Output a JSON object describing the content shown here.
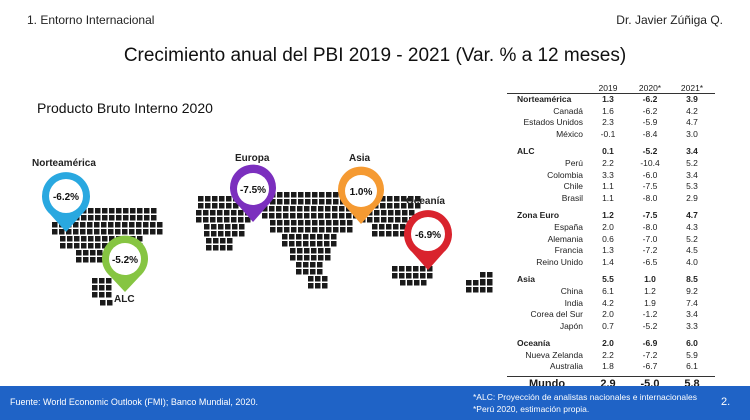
{
  "header": {
    "section": "1. Entorno Internacional",
    "author": "Dr. Javier Zúñiga Q."
  },
  "title": "Crecimiento anual del PBI 2019 - 2021 (Var. % a 12 meses)",
  "subtitle": "Producto Bruto Interno 2020",
  "map": {
    "pins": {
      "norteamerica": {
        "label": "Norteamérica",
        "value": "-6.2%",
        "color": "#29a8e0"
      },
      "alc": {
        "label": "ALC",
        "value": "-5.2%",
        "color": "#86c542"
      },
      "europa": {
        "label": "Europa",
        "value": "-7.5%",
        "color": "#7b2fbe"
      },
      "asia": {
        "label": "Asia",
        "value": "1.0%",
        "color": "#f59a32"
      },
      "oceania": {
        "label": "Oceanía",
        "value": "-6.9%",
        "color": "#d9232d"
      }
    }
  },
  "table": {
    "headers": [
      "2019",
      "2020*",
      "2021*"
    ],
    "groups": [
      {
        "name": "Norteamérica",
        "values": [
          "1.3",
          "-6.2",
          "3.9"
        ],
        "rows": [
          {
            "name": "Canadá",
            "values": [
              "1.6",
              "-6.2",
              "4.2"
            ]
          },
          {
            "name": "Estados Unidos",
            "values": [
              "2.3",
              "-5.9",
              "4.7"
            ]
          },
          {
            "name": "México",
            "values": [
              "-0.1",
              "-8.4",
              "3.0"
            ]
          }
        ]
      },
      {
        "name": "ALC",
        "values": [
          "0.1",
          "-5.2",
          "3.4"
        ],
        "rows": [
          {
            "name": "Perú",
            "values": [
              "2.2",
              "-10.4",
              "5.2"
            ]
          },
          {
            "name": "Colombia",
            "values": [
              "3.3",
              "-6.0",
              "3.4"
            ]
          },
          {
            "name": "Chile",
            "values": [
              "1.1",
              "-7.5",
              "5.3"
            ]
          },
          {
            "name": "Brasil",
            "values": [
              "1.1",
              "-8.0",
              "2.9"
            ]
          }
        ]
      },
      {
        "name": "Zona Euro",
        "values": [
          "1.2",
          "-7.5",
          "4.7"
        ],
        "rows": [
          {
            "name": "España",
            "values": [
              "2.0",
              "-8.0",
              "4.3"
            ]
          },
          {
            "name": "Alemania",
            "values": [
              "0.6",
              "-7.0",
              "5.2"
            ]
          },
          {
            "name": "Francia",
            "values": [
              "1.3",
              "-7.2",
              "4.5"
            ]
          },
          {
            "name": "Reino Unido",
            "values": [
              "1.4",
              "-6.5",
              "4.0"
            ]
          }
        ]
      },
      {
        "name": "Asia",
        "values": [
          "5.5",
          "1.0",
          "8.5"
        ],
        "rows": [
          {
            "name": "China",
            "values": [
              "6.1",
              "1.2",
              "9.2"
            ]
          },
          {
            "name": "India",
            "values": [
              "4.2",
              "1.9",
              "7.4"
            ]
          },
          {
            "name": "Corea del Sur",
            "values": [
              "2.0",
              "-1.2",
              "3.4"
            ]
          },
          {
            "name": "Japón",
            "values": [
              "0.7",
              "-5.2",
              "3.3"
            ]
          }
        ]
      },
      {
        "name": "Oceanía",
        "values": [
          "2.0",
          "-6.9",
          "6.0"
        ],
        "rows": [
          {
            "name": "Nueva Zelanda",
            "values": [
              "2.2",
              "-7.2",
              "5.9"
            ]
          },
          {
            "name": "Australia",
            "values": [
              "1.8",
              "-6.7",
              "6.1"
            ]
          }
        ]
      }
    ],
    "world": {
      "name": "Mundo",
      "values": [
        "2.9",
        "-5.0",
        "5.8"
      ]
    }
  },
  "footer": {
    "source": "Fuente: World Economic Outlook (FMI); Banco Mundial, 2020.",
    "note1": "*ALC: Proyección de analistas nacionales e internacionales",
    "note2": "*Perú 2020, estimación propia.",
    "page": "2."
  }
}
